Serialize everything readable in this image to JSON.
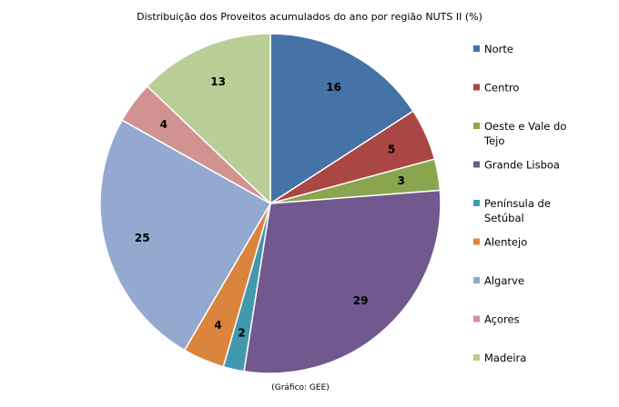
{
  "chart_data": {
    "type": "pie",
    "title": "Distribuição dos Proveitos acumulados do ano por região NUTS II (%)",
    "categories": [
      "Norte",
      "Centro",
      "Oeste e Vale do Tejo",
      "Grande Lisboa",
      "Península de Setúbal",
      "Alentejo",
      "Algarve",
      "Açores",
      "Madeira"
    ],
    "values": [
      16,
      5,
      3,
      29,
      2,
      4,
      25,
      4,
      13
    ],
    "data_labels": [
      "16",
      "5",
      "3",
      "29",
      "2",
      "4",
      "25",
      "4",
      "13"
    ],
    "colors": [
      "#4572A7",
      "#AA4643",
      "#89A54E",
      "#71588F",
      "#4198AF",
      "#DB843D",
      "#93A9CF",
      "#D19392",
      "#B9CD96"
    ],
    "legend_labels": [
      [
        "Norte"
      ],
      [
        "Centro"
      ],
      [
        "Oeste e Vale do",
        "Tejo"
      ],
      [
        "Grande Lisboa"
      ],
      [
        "Península de",
        "Setúbal"
      ],
      [
        "Alentejo"
      ],
      [
        "Algarve"
      ],
      [
        "Açores"
      ],
      [
        "Madeira"
      ]
    ],
    "legend_position": "right",
    "start_angle": "12 o'clock",
    "direction": "clockwise"
  },
  "source": "(Gráfico: GEE)"
}
